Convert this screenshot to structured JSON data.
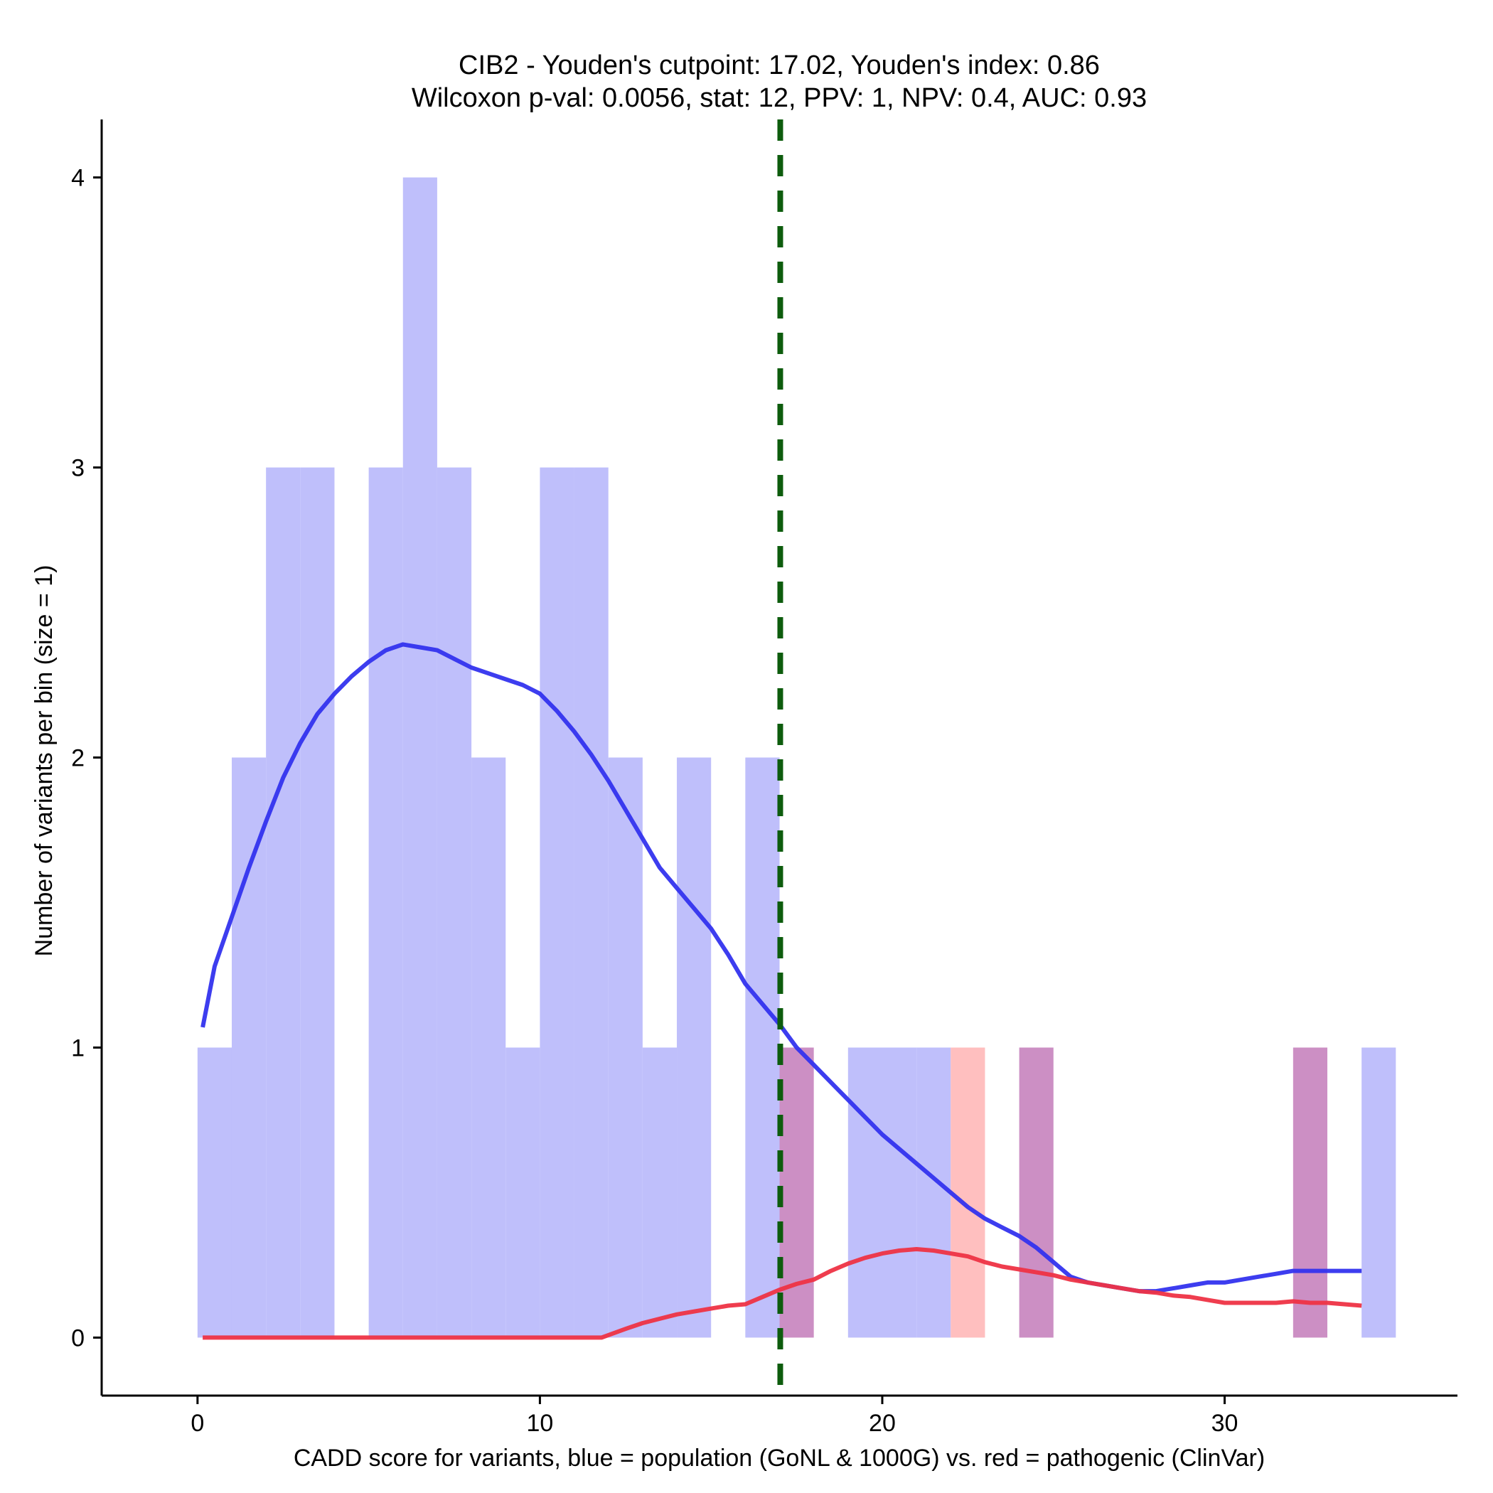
{
  "chart_data": {
    "type": "histogram",
    "title_line1": "CIB2 - Youden's cutpoint: 17.02, Youden's index: 0.86",
    "title_line2": "Wilcoxon p-val: 0.0056, stat: 12, PPV: 1, NPV: 0.4, AUC: 0.93",
    "xlabel": "CADD score for variants, blue = population (GoNL & 1000G) vs. red = pathogenic (ClinVar)",
    "ylabel": "Number of variants per bin (size = 1)",
    "xlim": [
      -2.8,
      36.8
    ],
    "ylim": [
      -0.2,
      4.2
    ],
    "x_ticks": [
      0,
      10,
      20,
      30
    ],
    "x_tick_labels": [
      "0",
      "10",
      "20",
      "30"
    ],
    "y_ticks": [
      0,
      1,
      2,
      3,
      4
    ],
    "y_tick_labels": [
      "0",
      "1",
      "2",
      "3",
      "4"
    ],
    "bin_size": 1,
    "cutpoint": 17.02,
    "colors": {
      "population_bar": "#bfbffb",
      "pathogenic_bar": "#ffbfbf",
      "overlap_bar": "#cc8fc4",
      "population_line": "#3333ee",
      "pathogenic_line": "#ee3344",
      "cutpoint_line": "#0d5c0d"
    },
    "series": [
      {
        "name": "population (GoNL & 1000G)",
        "bins": [
          [
            0,
            1
          ],
          [
            1,
            2
          ],
          [
            2,
            3
          ],
          [
            3,
            3
          ],
          [
            5,
            3
          ],
          [
            6,
            4
          ],
          [
            7,
            3
          ],
          [
            8,
            2
          ],
          [
            9,
            1
          ],
          [
            10,
            3
          ],
          [
            11,
            3
          ],
          [
            12,
            2
          ],
          [
            13,
            1
          ],
          [
            14,
            2
          ],
          [
            16,
            2
          ],
          [
            17,
            1
          ],
          [
            19,
            1
          ],
          [
            20,
            1
          ],
          [
            21,
            1
          ],
          [
            24,
            1
          ],
          [
            32,
            1
          ],
          [
            34,
            1
          ]
        ],
        "density_curve": [
          [
            0.15,
            1.07
          ],
          [
            0.5,
            1.28
          ],
          [
            1.0,
            1.45
          ],
          [
            1.5,
            1.62
          ],
          [
            2.0,
            1.78
          ],
          [
            2.5,
            1.93
          ],
          [
            3.0,
            2.05
          ],
          [
            3.5,
            2.15
          ],
          [
            4.0,
            2.22
          ],
          [
            4.5,
            2.28
          ],
          [
            5.0,
            2.33
          ],
          [
            5.5,
            2.37
          ],
          [
            6.0,
            2.39
          ],
          [
            6.5,
            2.38
          ],
          [
            7.0,
            2.37
          ],
          [
            7.5,
            2.34
          ],
          [
            8.0,
            2.31
          ],
          [
            8.5,
            2.29
          ],
          [
            9.0,
            2.27
          ],
          [
            9.5,
            2.25
          ],
          [
            10.0,
            2.22
          ],
          [
            10.5,
            2.16
          ],
          [
            11.0,
            2.09
          ],
          [
            11.5,
            2.01
          ],
          [
            12.0,
            1.92
          ],
          [
            12.5,
            1.82
          ],
          [
            13.0,
            1.72
          ],
          [
            13.5,
            1.62
          ],
          [
            14.0,
            1.55
          ],
          [
            14.5,
            1.48
          ],
          [
            15.0,
            1.41
          ],
          [
            15.5,
            1.32
          ],
          [
            16.0,
            1.22
          ],
          [
            16.5,
            1.15
          ],
          [
            17.0,
            1.08
          ],
          [
            17.5,
            1.0
          ],
          [
            18.0,
            0.94
          ],
          [
            18.5,
            0.88
          ],
          [
            19.0,
            0.82
          ],
          [
            19.5,
            0.76
          ],
          [
            20.0,
            0.7
          ],
          [
            20.5,
            0.65
          ],
          [
            21.0,
            0.6
          ],
          [
            21.5,
            0.55
          ],
          [
            22.0,
            0.5
          ],
          [
            22.5,
            0.45
          ],
          [
            23.0,
            0.41
          ],
          [
            23.5,
            0.38
          ],
          [
            24.0,
            0.35
          ],
          [
            24.5,
            0.31
          ],
          [
            25.0,
            0.26
          ],
          [
            25.5,
            0.21
          ],
          [
            26.0,
            0.19
          ],
          [
            26.5,
            0.18
          ],
          [
            27.0,
            0.17
          ],
          [
            27.5,
            0.16
          ],
          [
            28.0,
            0.16
          ],
          [
            28.5,
            0.17
          ],
          [
            29.0,
            0.18
          ],
          [
            29.5,
            0.19
          ],
          [
            30.0,
            0.19
          ],
          [
            30.5,
            0.2
          ],
          [
            31.0,
            0.21
          ],
          [
            31.5,
            0.22
          ],
          [
            32.0,
            0.23
          ],
          [
            32.5,
            0.23
          ],
          [
            33.0,
            0.23
          ],
          [
            33.5,
            0.23
          ],
          [
            34.0,
            0.23
          ]
        ]
      },
      {
        "name": "pathogenic (ClinVar)",
        "bins": [
          [
            17,
            1
          ],
          [
            22,
            1
          ],
          [
            24,
            1
          ],
          [
            32,
            1
          ]
        ],
        "density_curve": [
          [
            0.15,
            0.0
          ],
          [
            5.0,
            0.0
          ],
          [
            10.0,
            0.0
          ],
          [
            11.8,
            0.0
          ],
          [
            12.5,
            0.03
          ],
          [
            13.0,
            0.05
          ],
          [
            13.5,
            0.065
          ],
          [
            14.0,
            0.08
          ],
          [
            14.5,
            0.09
          ],
          [
            15.0,
            0.1
          ],
          [
            15.5,
            0.11
          ],
          [
            16.0,
            0.115
          ],
          [
            16.5,
            0.14
          ],
          [
            17.0,
            0.165
          ],
          [
            17.5,
            0.185
          ],
          [
            18.0,
            0.2
          ],
          [
            18.5,
            0.23
          ],
          [
            19.0,
            0.255
          ],
          [
            19.5,
            0.275
          ],
          [
            20.0,
            0.29
          ],
          [
            20.5,
            0.3
          ],
          [
            21.0,
            0.305
          ],
          [
            21.5,
            0.3
          ],
          [
            22.0,
            0.29
          ],
          [
            22.5,
            0.28
          ],
          [
            23.0,
            0.26
          ],
          [
            23.5,
            0.245
          ],
          [
            24.0,
            0.235
          ],
          [
            24.5,
            0.225
          ],
          [
            25.0,
            0.215
          ],
          [
            25.5,
            0.2
          ],
          [
            26.0,
            0.19
          ],
          [
            26.5,
            0.18
          ],
          [
            27.0,
            0.17
          ],
          [
            27.5,
            0.16
          ],
          [
            28.0,
            0.155
          ],
          [
            28.5,
            0.145
          ],
          [
            29.0,
            0.14
          ],
          [
            29.5,
            0.13
          ],
          [
            30.0,
            0.12
          ],
          [
            30.5,
            0.12
          ],
          [
            31.0,
            0.12
          ],
          [
            31.5,
            0.12
          ],
          [
            32.0,
            0.125
          ],
          [
            32.5,
            0.12
          ],
          [
            33.0,
            0.12
          ],
          [
            33.5,
            0.115
          ],
          [
            34.0,
            0.11
          ]
        ]
      }
    ]
  }
}
